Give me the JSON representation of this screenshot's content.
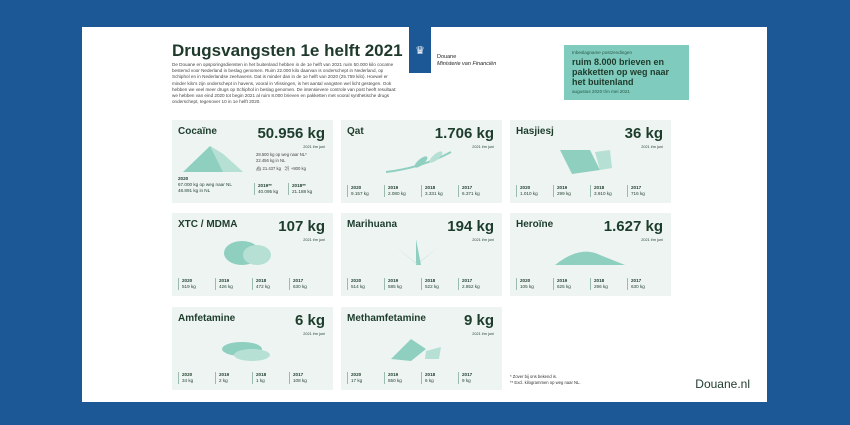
{
  "title": "Drugsvangsten 1e helft 2021",
  "intro": "De Douane en opsporingsdiensten in het buitenland hebben in de 1e helft van 2021 ruim 50.000 kilo cocaïne bestemd voor Nederland in beslag genomen. Ruim 22.000 kilo daarvan is onderschept in Nederland, op Schiphol en in Nederlandse zeehavens. Dat is minder dan in de 1e helft van 2020 (25.759 kilo). Hoewel er minder kilo's zijn onderschept in havens, vooral in Vlissingen, is het aantal vangsten wel licht gestegen. Ook hebben we veel meer drugs op Schiphol in beslag genomen. De intensievere controle van post heeft resultaat: we hebben van eind 2020 tot begin 2021 al ruim 8.000 brieven en pakketten met vooral synthetische drugs onderschept, tegenover 10 in 1e helft 2020.",
  "logo": {
    "org": "Douane",
    "ministry": "Ministerie van Financiën"
  },
  "post": {
    "small": "Inbeslagname postzendingen",
    "big": "ruim 8.000 brieven en pakketten op weg naar het buitenland",
    "period": "augustus 2020 t/m mei 2021"
  },
  "period": "2021 t/m juni",
  "cocaine": {
    "name": "Cocaïne",
    "amount": "50.956 kg",
    "onway": "28.500 kg op weg naar NL*",
    "innl": "22.456 kg in NL",
    "ship": "21.437 kg",
    "plane": "+800 kg",
    "y2020": "2020",
    "y2020a": "67.000 kg op weg naar NL",
    "y2020b": "48.891 kg in NL",
    "y2019": "2019**",
    "v2019": "40.095 kg",
    "y2018": "2018**",
    "v2018": "21.188 kg"
  },
  "cards": [
    {
      "name": "Qat",
      "amount": "1.706 kg",
      "years": [
        [
          "2020",
          "9.157 kg"
        ],
        [
          "2019",
          "2.080 kg"
        ],
        [
          "2018",
          "3.331 kg"
        ],
        [
          "2017",
          "6.371 kg"
        ]
      ]
    },
    {
      "name": "Hasjiesj",
      "amount": "36 kg",
      "years": [
        [
          "2020",
          "1.010 kg"
        ],
        [
          "2019",
          "299 kg"
        ],
        [
          "2018",
          "3.910 kg"
        ],
        [
          "2017",
          "716 kg"
        ]
      ]
    },
    {
      "name": "XTC / MDMA",
      "amount": "107 kg",
      "years": [
        [
          "2020",
          "519 kg"
        ],
        [
          "2019",
          "426 kg"
        ],
        [
          "2018",
          "472 kg"
        ],
        [
          "2017",
          "630 kg"
        ]
      ]
    },
    {
      "name": "Marihuana",
      "amount": "194 kg",
      "years": [
        [
          "2020",
          "514 kg"
        ],
        [
          "2019",
          "585 kg"
        ],
        [
          "2018",
          "522 kg"
        ],
        [
          "2017",
          "2.852 kg"
        ]
      ]
    },
    {
      "name": "Heroïne",
      "amount": "1.627 kg",
      "years": [
        [
          "2020",
          "105 kg"
        ],
        [
          "2019",
          "625 kg"
        ],
        [
          "2018",
          "296 kg"
        ],
        [
          "2017",
          "630 kg"
        ]
      ]
    },
    {
      "name": "Amfetamine",
      "amount": "6 kg",
      "years": [
        [
          "2020",
          "34 kg"
        ],
        [
          "2019",
          "2 kg"
        ],
        [
          "2018",
          "1 kg"
        ],
        [
          "2017",
          "108 kg"
        ]
      ]
    },
    {
      "name": "Methamfetamine",
      "amount": "9 kg",
      "years": [
        [
          "2020",
          "17 kg"
        ],
        [
          "2019",
          "550 kg"
        ],
        [
          "2018",
          "6 kg"
        ],
        [
          "2017",
          "9 kg"
        ]
      ]
    }
  ],
  "notes": [
    "* Zover bij ons bekend is.",
    "** Excl. kilogrammen op weg naar NL."
  ],
  "brand": "Douane.nl",
  "colors": {
    "background": "#1d5896",
    "card": "#eef4f2",
    "accent": "#7fcbbd"
  }
}
